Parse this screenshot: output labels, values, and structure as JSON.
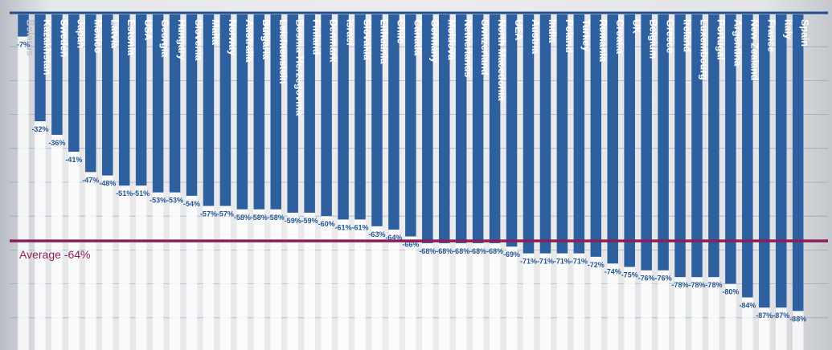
{
  "chart_data": {
    "type": "bar",
    "title": "",
    "xlabel": "",
    "ylabel": "",
    "ylim": [
      -95,
      0
    ],
    "grid": true,
    "categories": [
      "Belarus",
      "Kazakhstan",
      "Sweden",
      "Japan",
      "Mexico",
      "Latvia",
      "Estonia",
      "USA",
      "Georgia",
      "Hungary",
      "Slovenia",
      "Malta",
      "Norway",
      "Australia",
      "Bulgaria",
      "Leichtenstein",
      "Bosnia-Herzegovina",
      "Finland",
      "Denmark",
      "Israel",
      "Slovakia",
      "Lithuania",
      "Chile",
      "Canada",
      "Germany",
      "Moldova",
      "Netherlands",
      "Switzerland",
      "North Macedonia",
      "UEA",
      "Austria",
      "India",
      "Poland",
      "Turkey",
      "Romania",
      "Croatia",
      "UK",
      "Belgium",
      "Greece",
      "Ireland",
      "Luxembourg",
      "Portugal",
      "Argentina",
      "New Zealand",
      "France",
      "Italy",
      "Spain"
    ],
    "values": [
      -7,
      -32,
      -36,
      -41,
      -47,
      -48,
      -51,
      -51,
      -53,
      -53,
      -54,
      -57,
      -57,
      -58,
      -58,
      -58,
      -59,
      -59,
      -60,
      -61,
      -61,
      -63,
      -64,
      -66,
      -68,
      -68,
      -68,
      -68,
      -68,
      -69,
      -71,
      -71,
      -71,
      -71,
      -72,
      -74,
      -75,
      -76,
      -76,
      -78,
      -78,
      -78,
      -80,
      -84,
      -87,
      -87,
      -88
    ],
    "value_labels": [
      "-7%",
      "-32%",
      "-36%",
      "-41%",
      "-47%",
      "-48%",
      "-51%",
      "-51%",
      "-53%",
      "-53%",
      "-54%",
      "-57%",
      "-57%",
      "-58%",
      "-58%",
      "-58%",
      "-59%",
      "-59%",
      "-60%",
      "-61%",
      "-61%",
      "-63%",
      "-64%",
      "-66%",
      "-68%",
      "-68%",
      "-68%",
      "-68%",
      "-68%",
      "-69%",
      "-71%",
      "-71%",
      "-71%",
      "-71%",
      "-72%",
      "-74%",
      "-75%",
      "-76%",
      "-76%",
      "-78%",
      "-78%",
      "-78%",
      "-80%",
      "-84%",
      "-87%",
      "-87%",
      "-88%"
    ],
    "average": -64,
    "average_label": "Average -64%",
    "colors": {
      "bar": "#2e5f9e",
      "average_line": "#8a1f5a",
      "value_text": "#23548f"
    }
  }
}
